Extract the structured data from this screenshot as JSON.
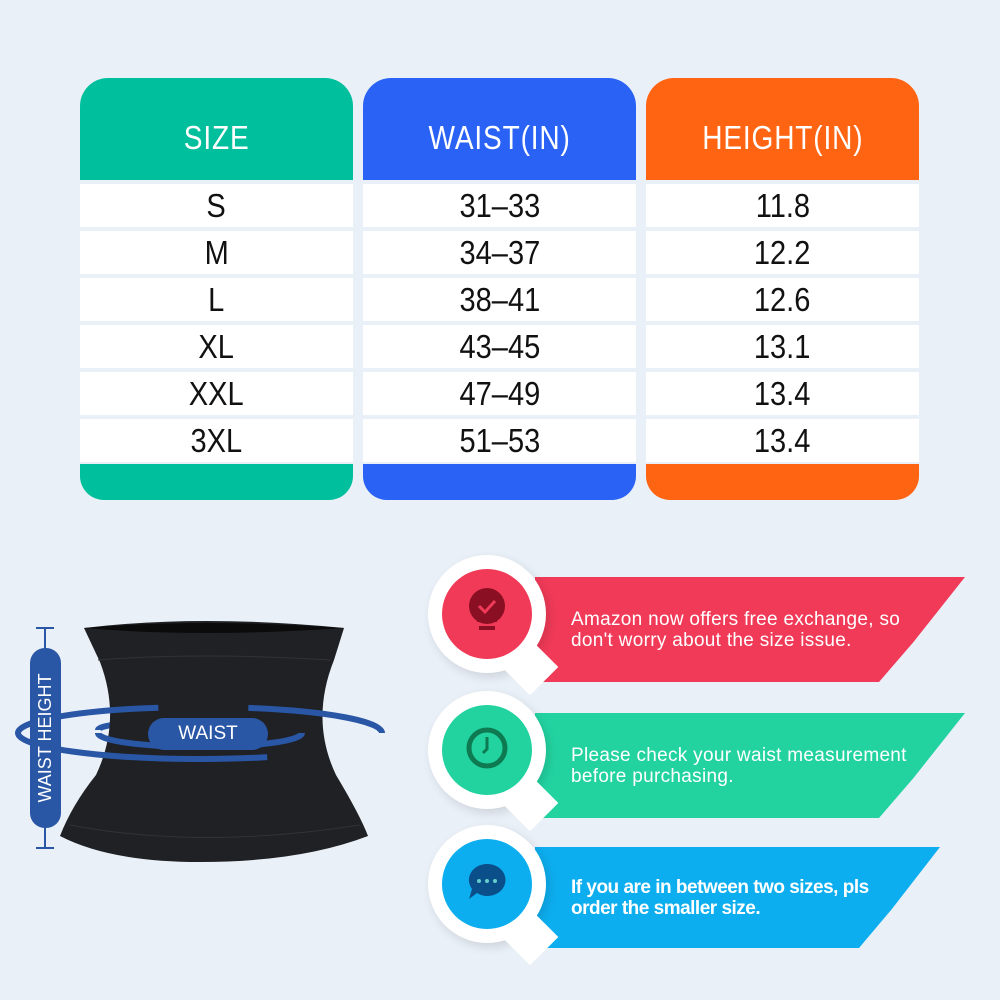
{
  "table": {
    "columns": [
      {
        "header": "SIZE",
        "color": "#00bf9c",
        "values": [
          "S",
          "M",
          "L",
          "XL",
          "XXL",
          "3XL"
        ]
      },
      {
        "header": "WAIST(IN)",
        "color": "#2962f5",
        "values": [
          "31–33",
          "34–37",
          "38–41",
          "43–45",
          "47–49",
          "51–53"
        ]
      },
      {
        "header": "HEIGHT(IN)",
        "color": "#ff6412",
        "values": [
          "11.8",
          "12.2",
          "12.6",
          "13.1",
          "13.4",
          "13.4"
        ]
      }
    ]
  },
  "product": {
    "waist_label": "WAIST",
    "height_label": "WAIST HEIGHT",
    "accent": "#2a56a6"
  },
  "tips": [
    {
      "icon": "lightbulb-check-icon",
      "text": "Amazon now offers free exchange, so don't worry about the size issue.",
      "color": "#f03a58"
    },
    {
      "icon": "clock-icon",
      "text": "Please check your waist measurement before purchasing.",
      "color": "#22d3a0"
    },
    {
      "icon": "chat-bubble-icon",
      "text": "If you are in between two sizes, pls order the smaller size.",
      "color": "#0daeef"
    }
  ]
}
